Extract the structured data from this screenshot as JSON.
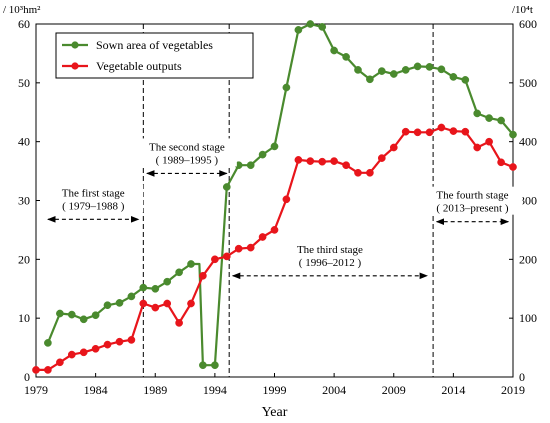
{
  "chart_data": {
    "type": "line",
    "xlabel": "Year",
    "left_unit": "/ 10³hm²",
    "right_unit": "/10⁴t",
    "xlim": [
      1979,
      2019
    ],
    "x_ticks": [
      1979,
      1984,
      1989,
      1994,
      1999,
      2004,
      2009,
      2014,
      2019
    ],
    "ylim_left": [
      0,
      60
    ],
    "y_ticks_left": [
      0,
      10,
      20,
      30,
      40,
      50,
      60
    ],
    "ylim_right": [
      0,
      600
    ],
    "y_ticks_right": [
      0,
      100,
      200,
      300,
      400,
      500,
      600
    ],
    "legend_position": "top-left",
    "colors": {
      "sown": "#4a8a2e",
      "output": "#e8151b"
    },
    "series": [
      {
        "name": "Sown area of vegetables",
        "axis": "left",
        "color": "#4a8a2e",
        "x": [
          1980,
          1981,
          1982,
          1983,
          1984,
          1985,
          1986,
          1987,
          1988,
          1989,
          1990,
          1991,
          1992,
          1992.7,
          1993,
          1994,
          1995,
          1996,
          1997,
          1998,
          1999,
          2000,
          2001,
          2002,
          2003,
          2004,
          2005,
          2006,
          2007,
          2008,
          2009,
          2010,
          2011,
          2012,
          2013,
          2014,
          2015,
          2016,
          2017,
          2018,
          2019
        ],
        "y": [
          5.8,
          10.8,
          10.6,
          9.8,
          10.5,
          12.2,
          12.6,
          13.7,
          15.2,
          15.0,
          16.2,
          17.8,
          19.2,
          19.2,
          2.0,
          2.0,
          32.3,
          36.0,
          36.0,
          37.8,
          39.2,
          49.2,
          59.0,
          60.0,
          59.5,
          55.5,
          54.4,
          52.2,
          50.6,
          52.0,
          51.5,
          52.2,
          52.8,
          52.7,
          52.3,
          51.0,
          50.5,
          44.8,
          44.0,
          43.6,
          41.2
        ]
      },
      {
        "name": "Vegetable outputs",
        "axis": "right",
        "color": "#e8151b",
        "x": [
          1979,
          1980,
          1981,
          1982,
          1983,
          1984,
          1985,
          1986,
          1987,
          1988,
          1989,
          1990,
          1991,
          1992,
          1993,
          1994,
          1995,
          1996,
          1997,
          1998,
          1999,
          2000,
          2001,
          2002,
          2003,
          2004,
          2005,
          2006,
          2007,
          2008,
          2009,
          2010,
          2011,
          2012,
          2013,
          2014,
          2015,
          2016,
          2017,
          2018,
          2019
        ],
        "y": [
          12,
          12,
          25,
          38,
          42,
          48,
          55,
          60,
          63,
          125,
          118,
          125,
          92,
          125,
          172,
          200,
          205,
          218,
          220,
          238,
          250,
          302,
          369,
          367,
          366,
          367,
          360,
          347,
          347,
          372,
          390,
          417,
          416,
          416,
          424,
          418,
          417,
          390,
          400,
          365,
          357
        ]
      }
    ],
    "stage_dividers": [
      1988,
      1995.2,
      2012.3
    ],
    "annotations": [
      {
        "line1": "The  first  stage",
        "line2": "( 1979–1988 )",
        "arrow_from": 1980,
        "arrow_to": 1987.6,
        "y": 26.8
      },
      {
        "line1": "The second stage",
        "line2": "( 1989–1995 )",
        "arrow_from": 1988.3,
        "arrow_to": 1995,
        "y": 34.6
      },
      {
        "line1": "The third stage",
        "line2": "( 1996–2012 )",
        "arrow_from": 1995.5,
        "arrow_to": 2011.8,
        "y": 17.2
      },
      {
        "line1": "The fourth stage",
        "line2": "( 2013–present )",
        "arrow_from": 2012.6,
        "arrow_to": 2018.6,
        "y": 26.4
      }
    ]
  }
}
